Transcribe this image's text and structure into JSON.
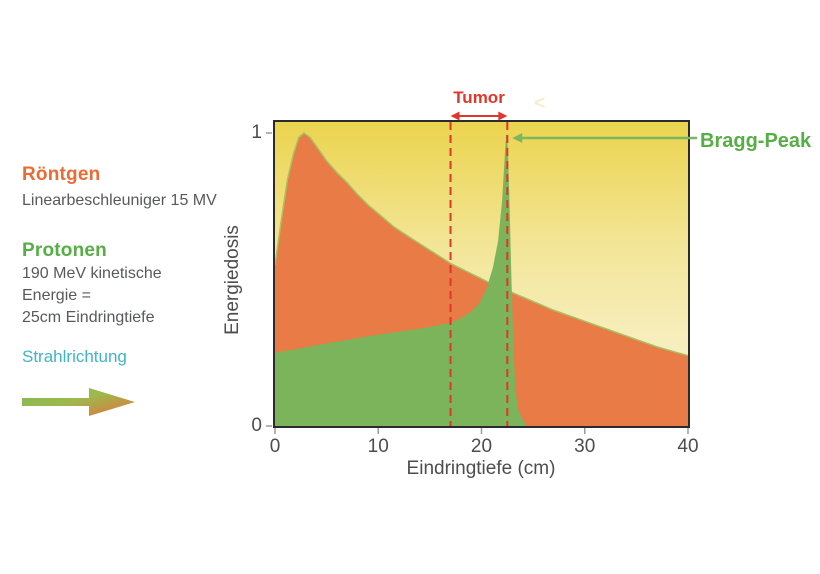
{
  "legend": {
    "xray_title": "Röntgen",
    "xray_subtitle": "Linearbeschleuniger 15 MV",
    "proton_title": "Protonen",
    "proton_lines": [
      "190 MeV kinetische",
      "Energie =",
      "25cm Eindringtiefe"
    ],
    "direction_label": "Strahlrichtung"
  },
  "annotations": {
    "tumor": "Tumor",
    "bragg": "Bragg-Peak",
    "watermark": "<"
  },
  "colors": {
    "xray_fill": "#E87B46",
    "xray_edge": "#A9C162",
    "proton_fill": "#7CB45B",
    "heading_orange": "#EC6A33",
    "heading_green": "#56AE46",
    "annotation_red": "#E0372C",
    "arrow_green": "#7FB660",
    "direction_teal": "#3EB4C6",
    "text_gray": "#58595B",
    "plot_bg_top": "#EBD44E",
    "plot_bg_bottom": "#FBF5DC"
  },
  "chart_data": {
    "type": "area",
    "title": "",
    "xlabel": "Eindringtiefe (cm)",
    "ylabel": "Energiedosis",
    "xlim": [
      0,
      40
    ],
    "ylim": [
      0,
      1
    ],
    "xticks": [
      0,
      10,
      20,
      30,
      40
    ],
    "yticks": [
      0,
      1
    ],
    "grid": false,
    "legend_position": "outside-left",
    "tumor_range_cm": [
      17,
      22.5
    ],
    "bragg_peak_cm": 22.4,
    "series": [
      {
        "name": "Röntgen Linearbeschleuniger 15 MV",
        "color": "#E87B46",
        "points": [
          [
            0,
            0.55
          ],
          [
            0.6,
            0.7
          ],
          [
            1.2,
            0.84
          ],
          [
            1.8,
            0.93
          ],
          [
            2.3,
            0.985
          ],
          [
            2.8,
            1.0
          ],
          [
            3.4,
            0.985
          ],
          [
            4.2,
            0.945
          ],
          [
            5,
            0.905
          ],
          [
            6,
            0.865
          ],
          [
            7,
            0.83
          ],
          [
            8,
            0.79
          ],
          [
            9,
            0.755
          ],
          [
            10,
            0.725
          ],
          [
            11.5,
            0.68
          ],
          [
            13,
            0.645
          ],
          [
            15,
            0.6
          ],
          [
            17,
            0.555
          ],
          [
            19,
            0.52
          ],
          [
            21,
            0.485
          ],
          [
            23,
            0.455
          ],
          [
            25,
            0.425
          ],
          [
            27,
            0.395
          ],
          [
            29,
            0.37
          ],
          [
            31,
            0.345
          ],
          [
            33,
            0.32
          ],
          [
            35,
            0.295
          ],
          [
            37,
            0.27
          ],
          [
            38.5,
            0.255
          ],
          [
            40,
            0.24
          ]
        ]
      },
      {
        "name": "Protonen 190 MeV",
        "color": "#7CB45B",
        "points": [
          [
            0,
            0.25
          ],
          [
            2,
            0.262
          ],
          [
            4,
            0.275
          ],
          [
            6,
            0.288
          ],
          [
            8,
            0.3
          ],
          [
            10,
            0.312
          ],
          [
            12,
            0.322
          ],
          [
            14,
            0.332
          ],
          [
            15,
            0.338
          ],
          [
            16,
            0.345
          ],
          [
            17,
            0.352
          ],
          [
            18,
            0.368
          ],
          [
            19,
            0.39
          ],
          [
            19.8,
            0.42
          ],
          [
            20.5,
            0.47
          ],
          [
            21.1,
            0.54
          ],
          [
            21.6,
            0.63
          ],
          [
            22.0,
            0.77
          ],
          [
            22.25,
            0.92
          ],
          [
            22.4,
            1.0
          ],
          [
            22.55,
            0.95
          ],
          [
            22.7,
            0.78
          ],
          [
            22.9,
            0.5
          ],
          [
            23.1,
            0.26
          ],
          [
            23.3,
            0.12
          ],
          [
            23.6,
            0.05
          ],
          [
            24.0,
            0.02
          ],
          [
            24.4,
            0
          ]
        ]
      }
    ]
  }
}
